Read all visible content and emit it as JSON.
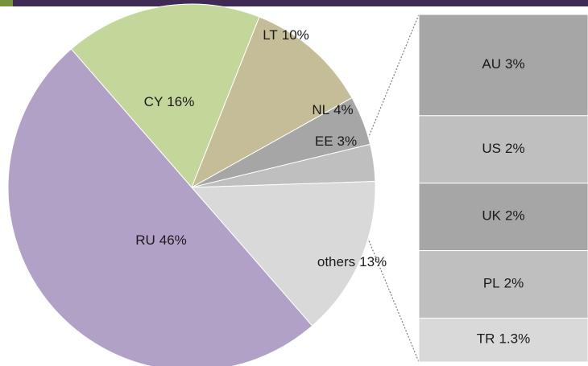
{
  "chart_data": [
    {
      "type": "pie",
      "categories": [
        "CY",
        "LT",
        "NL",
        "EE",
        "others",
        "RU"
      ],
      "values": [
        16,
        10,
        4,
        3,
        13,
        46
      ],
      "value_labels": [
        "16%",
        "10%",
        "4%",
        "3%",
        "13%",
        "46%"
      ],
      "colors": [
        "#c4d79b",
        "#c4bd97",
        "#a6a6a6",
        "#bfbfbf",
        "#d9d9d9",
        "#b2a1c7"
      ]
    },
    {
      "type": "stacked-bar",
      "categories": [
        "AU",
        "US",
        "UK",
        "PL",
        "TR"
      ],
      "values": [
        3,
        2,
        2,
        2,
        1.3
      ],
      "value_labels": [
        "3%",
        "2%",
        "2%",
        "2%",
        "1.3%"
      ],
      "colors": [
        "#a6a6a6",
        "#bfbfbf",
        "#a6a6a6",
        "#bfbfbf",
        "#d9d9d9"
      ]
    }
  ]
}
